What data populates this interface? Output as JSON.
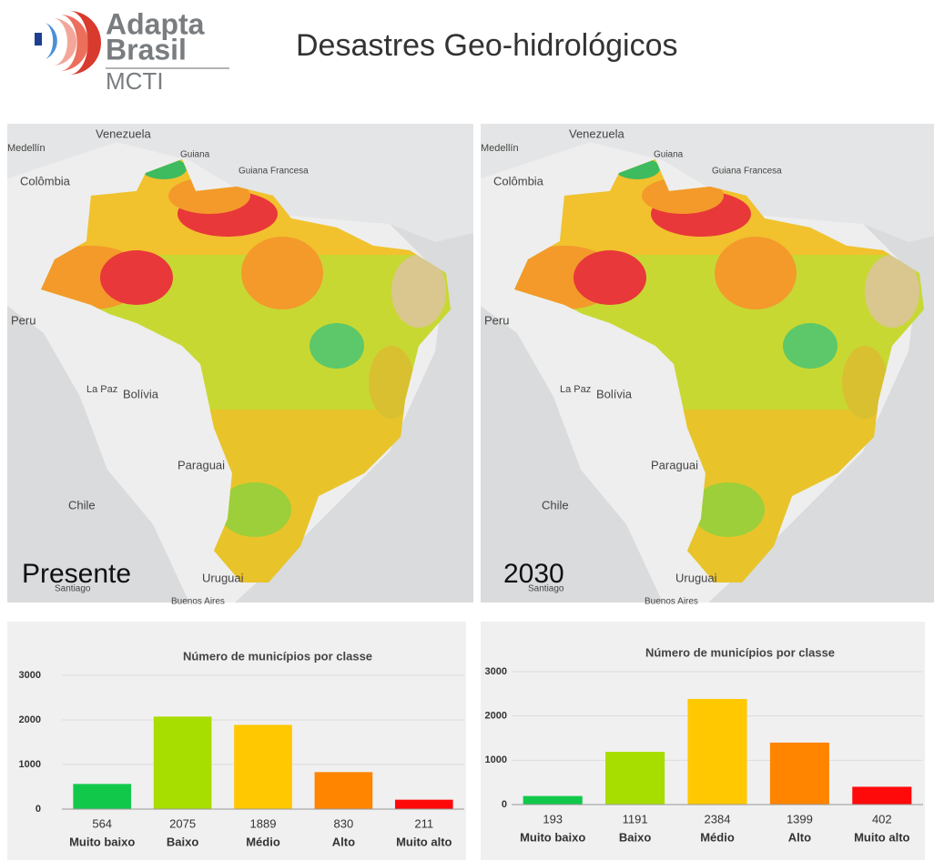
{
  "header": {
    "logo": [
      "Adapta",
      "Brasil",
      "MCTI"
    ],
    "title": "Desastres Geo-hidrológicos"
  },
  "map_labels": [
    "Venezuela",
    "Medellín",
    "Colômbia",
    "Guiana",
    "Guiana Francesa",
    "Peru",
    "La Paz",
    "Bolívia",
    "Paraguai",
    "Chile",
    "Uruguai",
    "Santiago",
    "Buenos Aires"
  ],
  "maps": [
    {
      "caption": "Presente"
    },
    {
      "caption": "2030"
    }
  ],
  "chart_data": [
    {
      "type": "bar",
      "title": "Número de municípios por classe",
      "categories": [
        "Muito baixo",
        "Baixo",
        "Médio",
        "Alto",
        "Muito alto"
      ],
      "values": [
        564,
        2075,
        1889,
        830,
        211
      ],
      "colors": [
        "#12c84b",
        "#a8dd00",
        "#ffc800",
        "#ff8400",
        "#ff0a0a"
      ],
      "ylim": [
        0,
        3000
      ],
      "yticks": [
        0,
        1000,
        2000,
        3000
      ],
      "grid": true
    },
    {
      "type": "bar",
      "title": "Número de municípios por classe",
      "categories": [
        "Muito baixo",
        "Baixo",
        "Médio",
        "Alto",
        "Muito alto"
      ],
      "values": [
        193,
        1191,
        2384,
        1399,
        402
      ],
      "colors": [
        "#12c84b",
        "#a8dd00",
        "#ffc800",
        "#ff8400",
        "#ff0a0a"
      ],
      "ylim": [
        0,
        3000
      ],
      "yticks": [
        0,
        1000,
        2000,
        3000
      ],
      "grid": true
    }
  ]
}
